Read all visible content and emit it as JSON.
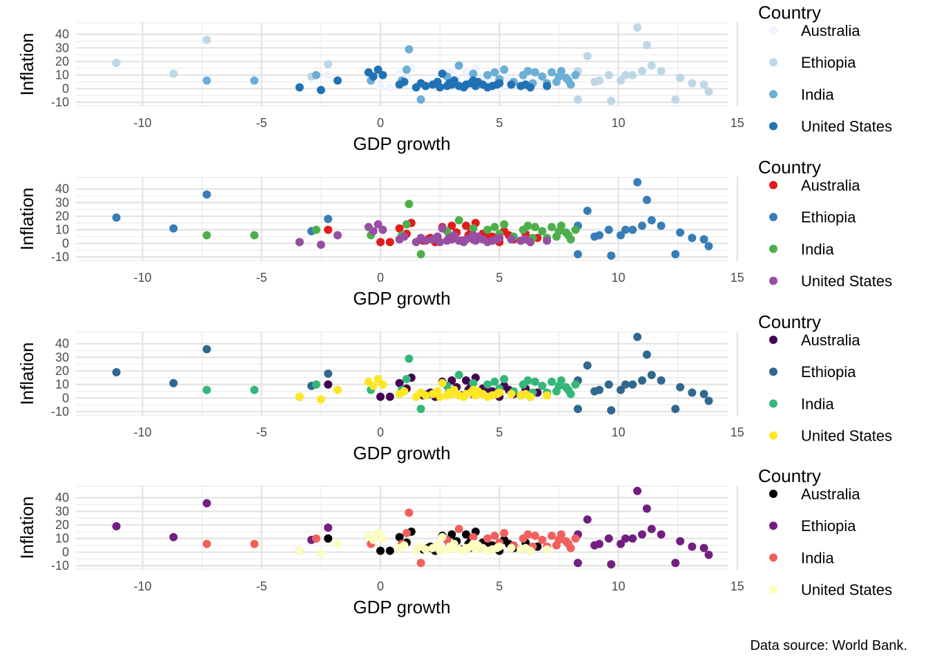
{
  "chart_data": {
    "type": "scatter",
    "xlabel": "GDP growth",
    "ylabel": "Inflation",
    "xlim": [
      -12.8,
      14.6
    ],
    "ylim": [
      -13,
      49
    ],
    "xticks": [
      -10,
      -5,
      0,
      5,
      10,
      15
    ],
    "yticks": [
      -10,
      0,
      10,
      20,
      30,
      40
    ],
    "grid": true,
    "legend_title": "Country",
    "legend_position": "right",
    "categories": [
      "Australia",
      "Ethiopia",
      "India",
      "United States"
    ],
    "caption": "Data source: World Bank.",
    "panels": [
      {
        "name": "blues",
        "palette": [
          "#eff3ff",
          "#bdd7e7",
          "#6baed6",
          "#2171b5"
        ]
      },
      {
        "name": "set1",
        "palette": [
          "#e41a1c",
          "#377eb8",
          "#4daf4a",
          "#984ea3"
        ]
      },
      {
        "name": "viridis",
        "palette": [
          "#440154",
          "#31688e",
          "#35b779",
          "#fde725"
        ]
      },
      {
        "name": "magma",
        "palette": [
          "#000004",
          "#721f81",
          "#f1605d",
          "#fcfdbf"
        ]
      }
    ],
    "series": [
      {
        "name": "Australia",
        "x": [
          -2.2,
          0.0,
          0.4,
          1.3,
          1.8,
          2.0,
          2.3,
          2.6,
          2.9,
          3.2,
          3.4,
          3.6,
          3.7,
          3.9,
          4.0,
          4.1,
          4.3,
          4.5,
          4.7,
          5.0,
          5.2,
          5.4,
          5.6,
          5.9,
          6.1,
          6.3,
          6.6,
          0.8,
          2.1,
          3.8,
          4.9,
          1.1,
          3.0,
          4.4
        ],
        "y": [
          10,
          1,
          1,
          15,
          2,
          3,
          1,
          12,
          5,
          8,
          2,
          13,
          6,
          3,
          15,
          4,
          7,
          2,
          5,
          1,
          9,
          6,
          3,
          2,
          7,
          1,
          4,
          11,
          4,
          8,
          3,
          7,
          13,
          6
        ]
      },
      {
        "name": "Ethiopia",
        "x": [
          -11.1,
          -8.7,
          -7.3,
          -3.4,
          -2.9,
          -2.2,
          8.3,
          8.3,
          8.7,
          9.0,
          9.2,
          9.6,
          9.7,
          10.1,
          10.3,
          10.6,
          10.8,
          11.0,
          11.2,
          11.4,
          11.8,
          12.4,
          12.6,
          13.1,
          13.6,
          13.8
        ],
        "y": [
          19,
          11,
          36,
          1,
          9,
          18,
          13,
          -8,
          24,
          5,
          6,
          10,
          -9,
          6,
          10,
          10,
          45,
          13,
          32,
          17,
          13,
          -8,
          8,
          4,
          3,
          -2
        ]
      },
      {
        "name": "India",
        "x": [
          -7.3,
          -5.3,
          -2.7,
          -0.4,
          0.9,
          1.1,
          1.2,
          1.7,
          3.3,
          4.5,
          5.0,
          5.6,
          6.0,
          6.2,
          6.5,
          6.8,
          7.0,
          7.2,
          7.4,
          7.5,
          7.6,
          7.8,
          8.0,
          8.2,
          3.9,
          5.2,
          6.4,
          7.9,
          2.8,
          4.8
        ],
        "y": [
          6,
          6,
          10,
          6,
          6,
          14,
          29,
          -8,
          17,
          10,
          7,
          5,
          10,
          13,
          12,
          9,
          4,
          12,
          5,
          9,
          13,
          8,
          3,
          10,
          11,
          14,
          4,
          6,
          9,
          12
        ]
      },
      {
        "name": "United States",
        "x": [
          -3.4,
          -2.5,
          -1.8,
          -0.5,
          -0.3,
          -0.1,
          0.1,
          0.8,
          1.0,
          1.5,
          1.7,
          1.9,
          2.2,
          2.4,
          2.5,
          2.8,
          2.9,
          3.0,
          3.1,
          3.3,
          3.5,
          3.6,
          3.8,
          4.0,
          4.1,
          4.3,
          4.5,
          4.7,
          5.0,
          5.5,
          5.9,
          6.1,
          6.3,
          7.0,
          2.6,
          3.9,
          4.9
        ],
        "y": [
          1,
          -1,
          6,
          12,
          9,
          14,
          10,
          3,
          5,
          1,
          4,
          2,
          3,
          5,
          1,
          2,
          4,
          3,
          6,
          2,
          1,
          3,
          4,
          2,
          5,
          3,
          1,
          2,
          4,
          3,
          2,
          3,
          1,
          2,
          11,
          6,
          3
        ]
      }
    ]
  }
}
